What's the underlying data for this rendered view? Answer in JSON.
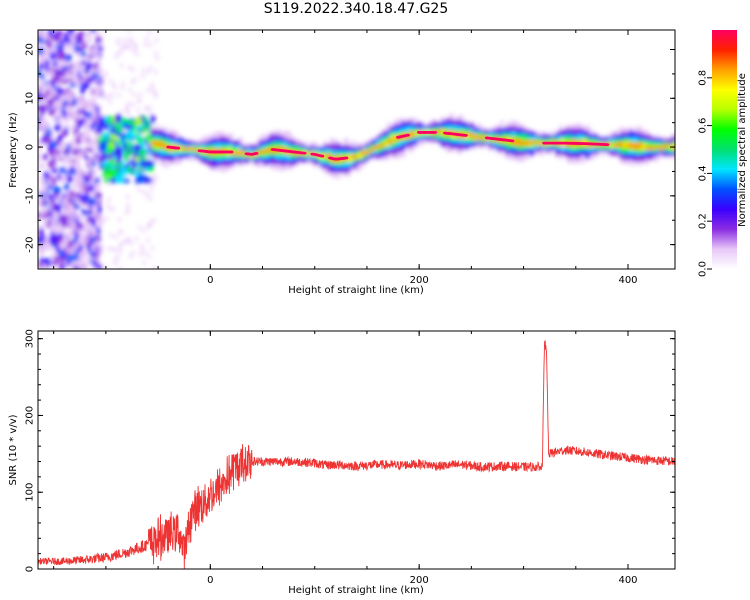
{
  "title": "S119.2022.340.18.47.G25",
  "chart_data": [
    {
      "type": "heatmap",
      "xlabel": "Height of straight line (km)",
      "ylabel": "Frequency (Hz)",
      "xlim": [
        -165,
        445
      ],
      "ylim": [
        -25,
        24
      ],
      "xticks": [
        0,
        200,
        400
      ],
      "yticks": [
        -20,
        -10,
        0,
        10,
        20
      ],
      "colorbar": {
        "label": "Normalized spectral amplitude",
        "range": [
          0,
          1
        ],
        "ticks": [
          0.0,
          0.2,
          0.4,
          0.6,
          0.8
        ],
        "colors": [
          "#ffffff",
          "#e7c8f8",
          "#8a2be2",
          "#3a00ff",
          "#0050ff",
          "#00e5ff",
          "#00e070",
          "#00ff00",
          "#b8ff00",
          "#ffff00",
          "#ffa000",
          "#ff2000",
          "#ff0060"
        ]
      },
      "ridge": {
        "x": [
          -60,
          -40,
          -20,
          0,
          20,
          40,
          60,
          80,
          100,
          120,
          140,
          160,
          180,
          200,
          220,
          240,
          260,
          280,
          300,
          320,
          340,
          360,
          380,
          400,
          420,
          445
        ],
        "y": [
          1.0,
          0.0,
          -0.5,
          -1.0,
          -1.0,
          -1.5,
          -0.5,
          -1.0,
          -1.5,
          -2.5,
          -2.0,
          0.0,
          2.0,
          3.0,
          3.0,
          2.5,
          2.0,
          1.5,
          1.0,
          0.8,
          0.8,
          0.7,
          0.5,
          0.3,
          0.0,
          0.0
        ]
      }
    },
    {
      "type": "line",
      "xlabel": "Height of straight line (km)",
      "ylabel": "SNR (10 * v/v)",
      "xlim": [
        -165,
        445
      ],
      "ylim": [
        0,
        310
      ],
      "xticks": [
        0,
        200,
        400
      ],
      "yticks": [
        0,
        100,
        200,
        300
      ],
      "series": [
        {
          "color": "#ee3333",
          "x": [
            -165,
            -140,
            -120,
            -100,
            -80,
            -60,
            -40,
            -30,
            -25,
            -20,
            -15,
            -10,
            0,
            10,
            20,
            30,
            40,
            60,
            80,
            100,
            110,
            120,
            140,
            160,
            180,
            200,
            220,
            240,
            260,
            280,
            300,
            318,
            320,
            322,
            324,
            330,
            340,
            360,
            380,
            400,
            420,
            445
          ],
          "y": [
            10,
            10,
            12,
            15,
            22,
            32,
            45,
            50,
            20,
            60,
            78,
            82,
            95,
            108,
            125,
            138,
            140,
            140,
            140,
            138,
            135,
            136,
            134,
            136,
            135,
            137,
            134,
            136,
            133,
            134,
            133,
            133,
            300,
            280,
            150,
            152,
            155,
            152,
            148,
            145,
            142,
            140
          ]
        }
      ]
    }
  ]
}
